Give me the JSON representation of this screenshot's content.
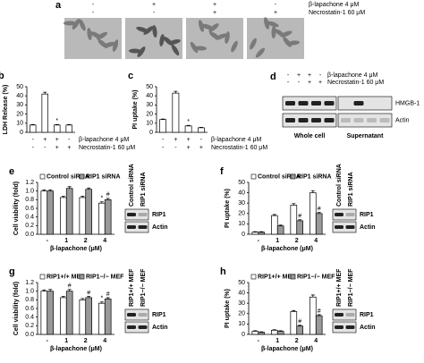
{
  "image_panel": {
    "label": "a",
    "conditions": [
      {
        "name": "β-lapachone 4 μM",
        "values": [
          "-",
          "+",
          "+",
          "-"
        ]
      },
      {
        "name": "Necrostatin-1 60 μM",
        "values": [
          "-",
          "-",
          "+",
          "+"
        ]
      }
    ]
  },
  "chart_data": [
    {
      "type": "bar",
      "label": "b",
      "ylabel": "LDH Release (%)",
      "values": [
        8,
        42,
        8,
        8
      ],
      "errors": [
        0.6,
        2,
        0.6,
        0.6
      ],
      "significance": [
        null,
        null,
        "*",
        null
      ],
      "color": "#ffffff",
      "ylim": [
        0,
        50
      ],
      "yticks": [
        0,
        10,
        20,
        30,
        40,
        50
      ],
      "conditions": [
        {
          "name": "β-lapachone 4 μM",
          "values": [
            "-",
            "+",
            "+",
            "-"
          ]
        },
        {
          "name": "Necrostatin-1 60 μM",
          "values": [
            "-",
            "-",
            "+",
            "+"
          ]
        }
      ]
    },
    {
      "type": "bar",
      "label": "c",
      "ylabel": "PI uptake (%)",
      "values": [
        14,
        43,
        7,
        5
      ],
      "errors": [
        0.6,
        2,
        0.6,
        0.5
      ],
      "significance": [
        null,
        null,
        "*",
        null
      ],
      "color": "#ffffff",
      "ylim": [
        0,
        50
      ],
      "yticks": [
        0,
        10,
        20,
        30,
        40,
        50
      ],
      "conditions": [
        {
          "name": "β-lapachone 4 μM",
          "values": [
            "-",
            "+",
            "+",
            "-"
          ]
        },
        {
          "name": "Necrostatin-1 60 μM",
          "values": [
            "-",
            "-",
            "+",
            "+"
          ]
        }
      ]
    },
    {
      "type": "bar",
      "label": "e",
      "ylabel": "Cell viability (fold)",
      "xlabel": "β-lapachone (μM)",
      "categories": [
        "-",
        "1",
        "2",
        "4"
      ],
      "series": [
        {
          "name": "Control siRNA",
          "color": "#ffffff",
          "values": [
            1.0,
            0.85,
            0.85,
            0.72
          ],
          "errors": [
            0.03,
            0.03,
            0.03,
            0.03
          ],
          "significance": [
            null,
            null,
            null,
            "*"
          ]
        },
        {
          "name": "RIP1 siRNA",
          "color": "#999999",
          "values": [
            1.0,
            1.06,
            1.04,
            0.8
          ],
          "errors": [
            0.03,
            0.04,
            0.03,
            0.03
          ],
          "significance": [
            null,
            null,
            null,
            "#"
          ]
        }
      ],
      "ylim": [
        0,
        1.2
      ],
      "yticks": [
        {
          "value": 0,
          "label": "0.0"
        },
        0.2,
        0.4,
        0.6,
        0.8,
        {
          "value": 1,
          "label": "1.0"
        },
        1.2
      ]
    },
    {
      "type": "bar",
      "label": "f",
      "ylabel": "PI uptake (%)",
      "xlabel": "β-lapachone (μM)",
      "categories": [
        "-",
        "1",
        "2",
        "4"
      ],
      "series": [
        {
          "name": "Control siRNA",
          "color": "#ffffff",
          "values": [
            2,
            18,
            28,
            40
          ],
          "errors": [
            0.5,
            1,
            1.5,
            2
          ],
          "significance": [
            null,
            null,
            null,
            null
          ]
        },
        {
          "name": "RIP1 siRNA",
          "color": "#999999",
          "values": [
            2,
            8,
            13,
            20
          ],
          "errors": [
            0.5,
            0.8,
            1,
            1
          ],
          "significance": [
            null,
            null,
            "#",
            "#"
          ]
        }
      ],
      "ylim": [
        0,
        50
      ],
      "yticks": [
        0,
        10,
        20,
        30,
        40,
        50
      ]
    },
    {
      "type": "bar",
      "label": "g",
      "ylabel": "Cell viability (fold)",
      "xlabel": "β-lapachone (μM)",
      "categories": [
        "-",
        "1",
        "2",
        "4"
      ],
      "series": [
        {
          "name": "RIP1+/+ MEF",
          "color": "#ffffff",
          "values": [
            1.0,
            0.85,
            0.8,
            0.72
          ],
          "errors": [
            0.03,
            0.03,
            0.03,
            0.03
          ],
          "significance": [
            null,
            null,
            null,
            "*"
          ]
        },
        {
          "name": "RIP1−/− MEF",
          "color": "#999999",
          "values": [
            1.0,
            1.0,
            0.85,
            0.82
          ],
          "errors": [
            0.04,
            0.04,
            0.03,
            0.03
          ],
          "significance": [
            null,
            "#",
            "#",
            "#"
          ]
        }
      ],
      "ylim": [
        0,
        1.2
      ],
      "yticks": [
        {
          "value": 0,
          "label": "0.0"
        },
        0.2,
        0.4,
        0.6,
        0.8,
        {
          "value": 1,
          "label": "1.0"
        },
        1.2
      ]
    },
    {
      "type": "bar",
      "label": "h",
      "ylabel": "PI uptake (%)",
      "xlabel": "β-lapachone (μM)",
      "categories": [
        "-",
        "1",
        "2",
        "4"
      ],
      "series": [
        {
          "name": "RIP1+/+ MEF",
          "color": "#ffffff",
          "values": [
            3,
            4,
            22,
            36
          ],
          "errors": [
            0.5,
            0.5,
            1,
            2
          ],
          "significance": [
            null,
            null,
            null,
            null
          ]
        },
        {
          "name": "RIP1−/− MEF",
          "color": "#999999",
          "values": [
            2,
            3,
            8,
            18
          ],
          "errors": [
            0.5,
            0.5,
            0.8,
            1
          ],
          "significance": [
            null,
            null,
            "#",
            "#"
          ]
        }
      ],
      "ylim": [
        0,
        50
      ],
      "yticks": [
        0,
        10,
        20,
        30,
        40,
        50
      ]
    }
  ],
  "blot_panels": [
    {
      "label": "d",
      "conditions": [
        {
          "name": "β-lapachone 4 μM",
          "values": [
            "-",
            "+",
            "+",
            "-"
          ]
        },
        {
          "name": "Necrostatin-1 60 μM",
          "values": [
            "-",
            "-",
            "+",
            "+"
          ]
        }
      ],
      "groups": [
        "Whole cell",
        "Supernatant"
      ],
      "rows": [
        "HMGB-1",
        "Actin"
      ]
    },
    {
      "columns": [
        "Control siRNA",
        "RIP1 siRNA"
      ],
      "rows": [
        "RIP1",
        "Actin"
      ]
    },
    {
      "columns": [
        "Control siRNA",
        "RIP1 siRNA"
      ],
      "rows": [
        "RIP1",
        "Actin"
      ]
    },
    {
      "columns": [
        "RIP1+/+ MEF",
        "RIP1−/− MEF"
      ],
      "rows": [
        "RIP1",
        "Actin"
      ]
    },
    {
      "columns": [
        "RIP1+/+ MEF",
        "RIP1−/− MEF"
      ],
      "rows": [
        "RIP1",
        "Actin"
      ]
    }
  ]
}
